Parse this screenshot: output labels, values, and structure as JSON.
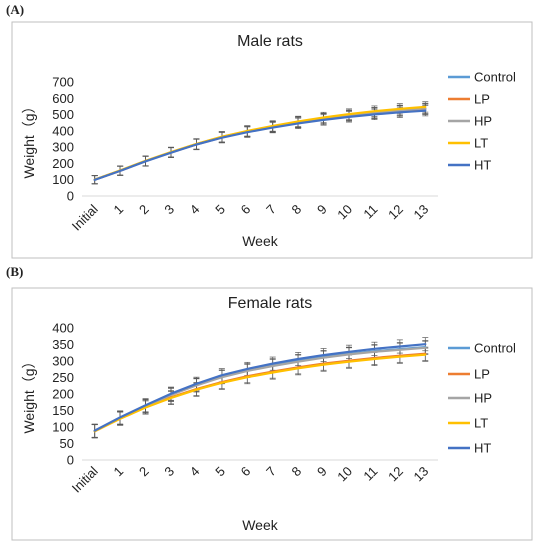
{
  "figure": {
    "label_a": "(A)",
    "label_b": "(B)"
  },
  "chart_data": [
    {
      "type": "line",
      "title": "Male rats",
      "xlabel": "Week",
      "ylabel": "Weight（g）",
      "categories": [
        "Initial",
        "1",
        "2",
        "3",
        "4",
        "5",
        "6",
        "7",
        "8",
        "9",
        "10",
        "11",
        "12",
        "13"
      ],
      "ylim": [
        0,
        700
      ],
      "yticks": [
        0,
        100,
        200,
        300,
        400,
        500,
        600,
        700
      ],
      "grid": false,
      "legend": "right",
      "series": [
        {
          "name": "Control",
          "color": "#5B9BD5",
          "values": [
            100,
            155,
            215,
            268,
            318,
            362,
            397,
            425,
            452,
            474,
            493,
            508,
            522,
            532
          ],
          "err": [
            25,
            28,
            30,
            30,
            32,
            32,
            32,
            32,
            32,
            32,
            32,
            32,
            32,
            32
          ]
        },
        {
          "name": "LP",
          "color": "#ED7D31",
          "values": [
            100,
            155,
            214,
            267,
            317,
            360,
            395,
            424,
            451,
            473,
            493,
            509,
            524,
            536
          ],
          "err": [
            25,
            28,
            30,
            30,
            32,
            32,
            32,
            32,
            32,
            32,
            32,
            32,
            32,
            32
          ]
        },
        {
          "name": "HP",
          "color": "#A5A5A5",
          "values": [
            100,
            156,
            215,
            268,
            319,
            362,
            397,
            426,
            454,
            476,
            496,
            512,
            526,
            538
          ],
          "err": [
            25,
            28,
            30,
            30,
            32,
            32,
            32,
            32,
            32,
            32,
            32,
            32,
            32,
            32
          ]
        },
        {
          "name": "LT",
          "color": "#FFC000",
          "values": [
            101,
            157,
            216,
            270,
            320,
            364,
            400,
            430,
            458,
            482,
            503,
            521,
            535,
            547
          ],
          "err": [
            25,
            28,
            30,
            30,
            32,
            32,
            32,
            32,
            32,
            32,
            32,
            32,
            32,
            32
          ]
        },
        {
          "name": "HT",
          "color": "#4472C4",
          "values": [
            99,
            154,
            213,
            266,
            316,
            358,
            392,
            420,
            446,
            467,
            486,
            501,
            514,
            524
          ],
          "err": [
            25,
            28,
            30,
            30,
            32,
            32,
            32,
            32,
            32,
            32,
            32,
            32,
            32,
            32
          ]
        }
      ]
    },
    {
      "type": "line",
      "title": "Female rats",
      "xlabel": "Week",
      "ylabel": "Weight（g）",
      "categories": [
        "Initial",
        "1",
        "2",
        "3",
        "4",
        "5",
        "6",
        "7",
        "8",
        "9",
        "10",
        "11",
        "12",
        "13"
      ],
      "ylim": [
        0,
        400
      ],
      "yticks": [
        0,
        50,
        100,
        150,
        200,
        250,
        300,
        350,
        400
      ],
      "grid": false,
      "legend": "right",
      "series": [
        {
          "name": "Control",
          "color": "#5B9BD5",
          "values": [
            88,
            128,
            164,
            199,
            228,
            253,
            272,
            287,
            300,
            312,
            322,
            330,
            336,
            342
          ],
          "err": [
            20,
            20,
            20,
            20,
            20,
            20,
            20,
            20,
            20,
            20,
            20,
            20,
            20,
            20
          ]
        },
        {
          "name": "LP",
          "color": "#ED7D31",
          "values": [
            87,
            126,
            160,
            190,
            215,
            236,
            254,
            268,
            281,
            292,
            301,
            309,
            316,
            322
          ],
          "err": [
            20,
            20,
            20,
            20,
            20,
            20,
            20,
            20,
            20,
            20,
            20,
            20,
            20,
            20
          ]
        },
        {
          "name": "HP",
          "color": "#A5A5A5",
          "values": [
            88,
            127,
            163,
            197,
            226,
            251,
            270,
            285,
            298,
            310,
            320,
            328,
            334,
            340
          ],
          "err": [
            20,
            20,
            20,
            20,
            20,
            20,
            20,
            20,
            20,
            20,
            20,
            20,
            20,
            20
          ]
        },
        {
          "name": "LT",
          "color": "#FFC000",
          "values": [
            87,
            125,
            159,
            188,
            213,
            234,
            251,
            265,
            278,
            289,
            298,
            306,
            313,
            319
          ],
          "err": [
            20,
            20,
            20,
            20,
            20,
            20,
            20,
            20,
            20,
            20,
            20,
            20,
            20,
            20
          ]
        },
        {
          "name": "HT",
          "color": "#4472C4",
          "values": [
            89,
            129,
            166,
            201,
            231,
            257,
            276,
            292,
            306,
            318,
            328,
            337,
            344,
            351
          ],
          "err": [
            20,
            20,
            20,
            20,
            20,
            20,
            20,
            20,
            20,
            20,
            20,
            20,
            20,
            20
          ]
        }
      ]
    }
  ]
}
